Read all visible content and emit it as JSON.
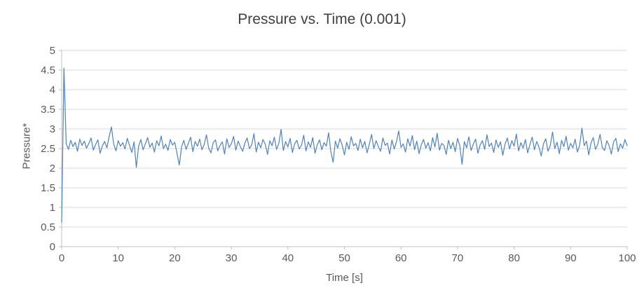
{
  "chart_data": {
    "type": "line",
    "title": "Pressure vs. Time (0.001)",
    "xlabel": "Time [s]",
    "ylabel": "Pressure*",
    "xlim": [
      0,
      100
    ],
    "ylim": [
      0,
      5
    ],
    "x_ticks": [
      0,
      10,
      20,
      30,
      40,
      50,
      60,
      70,
      80,
      90,
      100
    ],
    "y_ticks": [
      0,
      0.5,
      1,
      1.5,
      2,
      2.5,
      3,
      3.5,
      4,
      4.5,
      5
    ],
    "y_tick_labels": [
      "0",
      "0.5",
      "1",
      "1.5",
      "2",
      "2.5",
      "3",
      "3.5",
      "4",
      "4.5",
      "5"
    ],
    "grid": "horizontal",
    "legend": "none",
    "colors": {
      "line": "#4F81BD",
      "gridline": "#D9D9D9",
      "axis": "#BFBFBF",
      "tick_text": "#595959",
      "title_text": "#404040"
    },
    "series": [
      {
        "name": "Pressure",
        "x_start": 0,
        "x_step": 0.4,
        "values": [
          0.62,
          4.55,
          2.62,
          2.48,
          2.71,
          2.55,
          2.66,
          2.43,
          2.74,
          2.58,
          2.69,
          2.51,
          2.63,
          2.77,
          2.46,
          2.6,
          2.72,
          2.38,
          2.57,
          2.68,
          2.52,
          2.81,
          3.05,
          2.61,
          2.44,
          2.7,
          2.56,
          2.65,
          2.49,
          2.76,
          2.58,
          2.4,
          2.67,
          2.02,
          2.55,
          2.73,
          2.47,
          2.62,
          2.78,
          2.53,
          2.64,
          2.41,
          2.7,
          2.57,
          2.82,
          2.5,
          2.61,
          2.45,
          2.73,
          2.59,
          2.66,
          2.37,
          2.08,
          2.54,
          2.71,
          2.48,
          2.63,
          2.79,
          2.42,
          2.68,
          2.56,
          2.74,
          2.47,
          2.6,
          2.85,
          2.51,
          2.39,
          2.65,
          2.72,
          2.44,
          2.58,
          2.67,
          2.36,
          2.75,
          2.53,
          2.62,
          2.81,
          2.46,
          2.69,
          2.55,
          2.43,
          2.64,
          2.77,
          2.5,
          2.59,
          2.88,
          2.41,
          2.66,
          2.52,
          2.73,
          2.61,
          2.35,
          2.7,
          2.57,
          2.79,
          2.48,
          2.63,
          2.99,
          2.45,
          2.68,
          2.54,
          2.76,
          2.4,
          2.62,
          2.71,
          2.49,
          2.58,
          2.84,
          2.44,
          2.67,
          2.53,
          2.78,
          2.38,
          2.6,
          2.72,
          2.47,
          2.65,
          2.56,
          2.9,
          2.42,
          2.15,
          2.69,
          2.51,
          2.75,
          2.59,
          2.34,
          2.66,
          2.48,
          2.8,
          2.57,
          2.63,
          2.45,
          2.74,
          2.52,
          2.68,
          2.39,
          2.61,
          2.86,
          2.5,
          2.7,
          2.55,
          2.43,
          2.77,
          2.58,
          2.64,
          2.36,
          2.72,
          2.49,
          2.67,
          2.95,
          2.53,
          2.62,
          2.41,
          2.75,
          2.56,
          2.83,
          2.47,
          2.69,
          2.37,
          2.6,
          2.73,
          2.51,
          2.65,
          2.44,
          2.78,
          2.54,
          2.89,
          2.46,
          2.63,
          2.58,
          2.35,
          2.71,
          2.5,
          2.66,
          2.42,
          2.76,
          2.57,
          2.1,
          2.68,
          2.52,
          2.8,
          2.45,
          2.62,
          2.74,
          2.38,
          2.59,
          2.7,
          2.48,
          2.85,
          2.55,
          2.64,
          2.4,
          2.72,
          2.53,
          2.67,
          2.33,
          2.61,
          2.77,
          2.49,
          2.7,
          2.56,
          2.87,
          2.44,
          2.65,
          2.51,
          2.73,
          2.39,
          2.6,
          2.79,
          2.47,
          2.68,
          2.54,
          2.31,
          2.62,
          2.75,
          2.43,
          2.58,
          2.92,
          2.5,
          2.66,
          2.37,
          2.71,
          2.55,
          2.81,
          2.46,
          2.63,
          2.52,
          2.74,
          2.41,
          2.59,
          3.02,
          2.57,
          2.69,
          2.34,
          2.64,
          2.78,
          2.48,
          2.61,
          2.86,
          2.53,
          2.45,
          2.7,
          2.58,
          2.36,
          2.67,
          2.76,
          2.42,
          2.62,
          2.51,
          2.73,
          2.57
        ]
      }
    ]
  }
}
